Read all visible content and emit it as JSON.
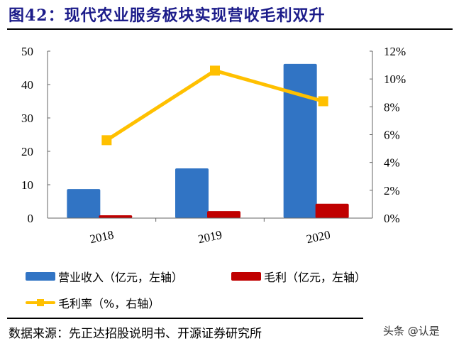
{
  "title": "图42：现代农业服务板块实现营收毛利双升",
  "source": "数据来源：先正达招股说明书、开源证券研究所",
  "watermark": "头条 @认是",
  "chart_data": {
    "type": "bar+line",
    "categories": [
      "2018",
      "2019",
      "2020"
    ],
    "series": [
      {
        "name": "营业收入（亿元，左轴",
        "axis": "left",
        "type": "bar",
        "color": "#3174c4",
        "values": [
          8.7,
          14.9,
          46.2
        ]
      },
      {
        "name": "毛利（亿元，左轴",
        "axis": "left",
        "type": "bar",
        "color": "#c00000",
        "values": [
          0.85,
          2.1,
          4.3
        ]
      },
      {
        "name": "毛利率（%，右轴",
        "axis": "right",
        "type": "line",
        "marker": "square",
        "color": "#ffc000",
        "values": [
          5.6,
          10.6,
          8.4
        ]
      }
    ],
    "legend_suffix": "）",
    "y_left": {
      "range": [
        0,
        50
      ],
      "ticks": [
        "0",
        "10",
        "20",
        "30",
        "40",
        "50"
      ]
    },
    "y_right": {
      "range": [
        0,
        12
      ],
      "ticks": [
        "0%",
        "2%",
        "4%",
        "6%",
        "8%",
        "10%",
        "12%"
      ]
    },
    "grid": false,
    "legend_placement": "bottom"
  }
}
